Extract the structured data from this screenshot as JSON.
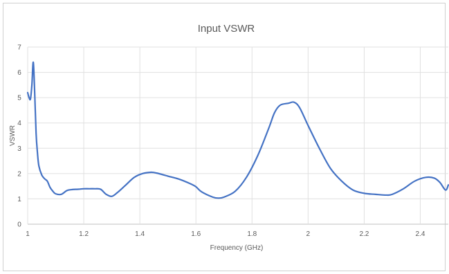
{
  "chart_data": {
    "type": "line",
    "title": "Input VSWR",
    "xlabel": "Frequency (GHz)",
    "ylabel": "VSWR",
    "xlim": [
      1,
      2.5
    ],
    "ylim": [
      0,
      7
    ],
    "x_ticks": [
      1,
      1.2,
      1.4,
      1.6,
      1.8,
      2,
      2.2,
      2.4
    ],
    "x_tick_labels": [
      "1",
      "1.2",
      "1.4",
      "1.6",
      "1.8",
      "2",
      "2.2",
      "2.4"
    ],
    "y_ticks": [
      0,
      1,
      2,
      3,
      4,
      5,
      6,
      7
    ],
    "y_tick_labels": [
      "0",
      "1",
      "2",
      "3",
      "4",
      "5",
      "6",
      "7"
    ],
    "grid": true,
    "legend": "none",
    "series": [
      {
        "color": "#4472c4",
        "x": [
          1.0,
          1.005,
          1.01,
          1.015,
          1.02,
          1.025,
          1.03,
          1.035,
          1.04,
          1.05,
          1.06,
          1.07,
          1.08,
          1.09,
          1.1,
          1.12,
          1.14,
          1.16,
          1.18,
          1.2,
          1.22,
          1.24,
          1.26,
          1.28,
          1.3,
          1.32,
          1.35,
          1.38,
          1.41,
          1.44,
          1.46,
          1.5,
          1.54,
          1.58,
          1.6,
          1.62,
          1.66,
          1.68,
          1.7,
          1.74,
          1.78,
          1.82,
          1.86,
          1.88,
          1.9,
          1.93,
          1.95,
          1.97,
          2.0,
          2.04,
          2.08,
          2.12,
          2.16,
          2.2,
          2.24,
          2.28,
          2.3,
          2.34,
          2.38,
          2.42,
          2.45,
          2.47,
          2.49,
          2.5
        ],
        "y": [
          5.2,
          5.0,
          4.95,
          5.5,
          6.4,
          5.2,
          3.6,
          2.8,
          2.3,
          1.95,
          1.8,
          1.7,
          1.45,
          1.3,
          1.2,
          1.18,
          1.33,
          1.37,
          1.38,
          1.4,
          1.4,
          1.4,
          1.38,
          1.18,
          1.1,
          1.25,
          1.55,
          1.85,
          2.0,
          2.05,
          2.02,
          1.9,
          1.78,
          1.6,
          1.48,
          1.28,
          1.07,
          1.03,
          1.07,
          1.3,
          1.85,
          2.7,
          3.8,
          4.4,
          4.7,
          4.78,
          4.82,
          4.6,
          3.9,
          3.0,
          2.2,
          1.7,
          1.35,
          1.22,
          1.18,
          1.15,
          1.18,
          1.4,
          1.7,
          1.85,
          1.82,
          1.65,
          1.35,
          1.55
        ]
      }
    ]
  }
}
